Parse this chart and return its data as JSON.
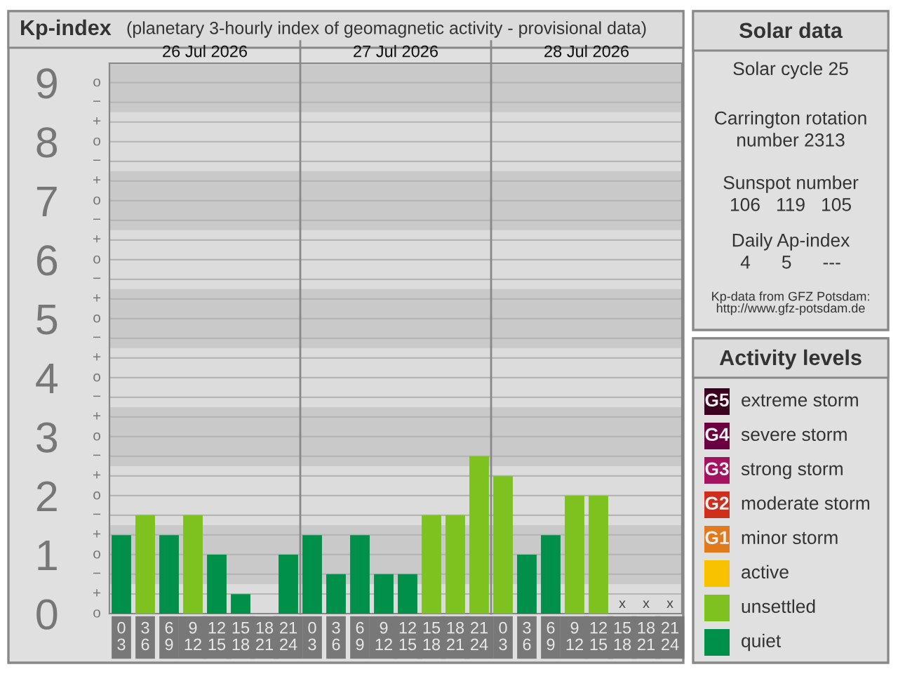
{
  "chart_data": [
    {
      "type": "bar",
      "title": "Kp-index",
      "subtitle": "(planetary 3-hourly index of geomagnetic activity - provisional data)",
      "categories": [
        "0\n3",
        "3\n6",
        "6\n9",
        "9\n12",
        "12\n15",
        "15\n18",
        "18\n21",
        "21\n24",
        "0\n3",
        "3\n6",
        "6\n9",
        "9\n12",
        "12\n15",
        "15\n18",
        "18\n21",
        "21\n24",
        "0\n3",
        "3\n6",
        "6\n9",
        "9\n12",
        "12\n15",
        "15\n18",
        "18\n21",
        "21\n24"
      ],
      "values": [
        1.33,
        1.67,
        1.33,
        1.67,
        1,
        0.33,
        0,
        1,
        1.33,
        0.67,
        1.33,
        0.67,
        0.67,
        1.67,
        1.67,
        2.67,
        2.33,
        1,
        1.33,
        2,
        2,
        null,
        null,
        null
      ],
      "colors": [
        "#00904a",
        "#7dc21e",
        "#00904a",
        "#7dc21e",
        "#00904a",
        "#00904a",
        "#00904a",
        "#00904a",
        "#00904a",
        "#00904a",
        "#00904a",
        "#00904a",
        "#00904a",
        "#7dc21e",
        "#7dc21e",
        "#7dc21e",
        "#7dc21e",
        "#00904a",
        "#00904a",
        "#7dc21e",
        "#7dc21e",
        "#00904a",
        "#00904a",
        "#00904a"
      ],
      "value_labels": [
        null,
        null,
        null,
        null,
        null,
        null,
        null,
        null,
        null,
        null,
        null,
        null,
        null,
        null,
        null,
        null,
        null,
        null,
        null,
        null,
        null,
        "x",
        "x",
        "x"
      ],
      "ylim": [
        0,
        9.33
      ],
      "yticks": [
        0,
        1,
        2,
        3,
        4,
        5,
        6,
        7,
        8,
        9
      ],
      "annotations": [
        "26 Jul 2026",
        "27 Jul 2026",
        "28 Jul 2026",
        "o",
        "+",
        "−",
        "o",
        "+",
        "−",
        "o",
        "+",
        "−",
        "o",
        "+",
        "−",
        "o",
        "+",
        "−",
        "o",
        "+",
        "−",
        "o",
        "+",
        "−",
        "o",
        "+",
        "−",
        "o",
        "+",
        "−",
        "o"
      ],
      "grid": "y"
    },
    {
      "type": "other",
      "title": "Solar data",
      "annotations": [
        "Solar cycle 25",
        "Carrington rotation\nnumber 2313",
        "Sunspot number\n106   119   105",
        "Daily Ap-index\n4      5      ---",
        "Kp-data from GFZ Potsdam:\nhttp://www.gfz-potsdam.de"
      ]
    },
    {
      "type": "other",
      "title": "Activity levels",
      "categories": [
        "extreme storm",
        "severe storm",
        "strong storm",
        "moderate storm",
        "minor storm",
        "active",
        "unsettled",
        "quiet"
      ],
      "colors": [
        "#3c0020",
        "#6a0040",
        "#a3135f",
        "#d02e1c",
        "#e07a1c",
        "#f8c200",
        "#7dc21e",
        "#00904a"
      ],
      "value_labels": [
        "G5",
        "G4",
        "G3",
        "G2",
        "G1",
        null,
        null,
        null
      ]
    }
  ]
}
